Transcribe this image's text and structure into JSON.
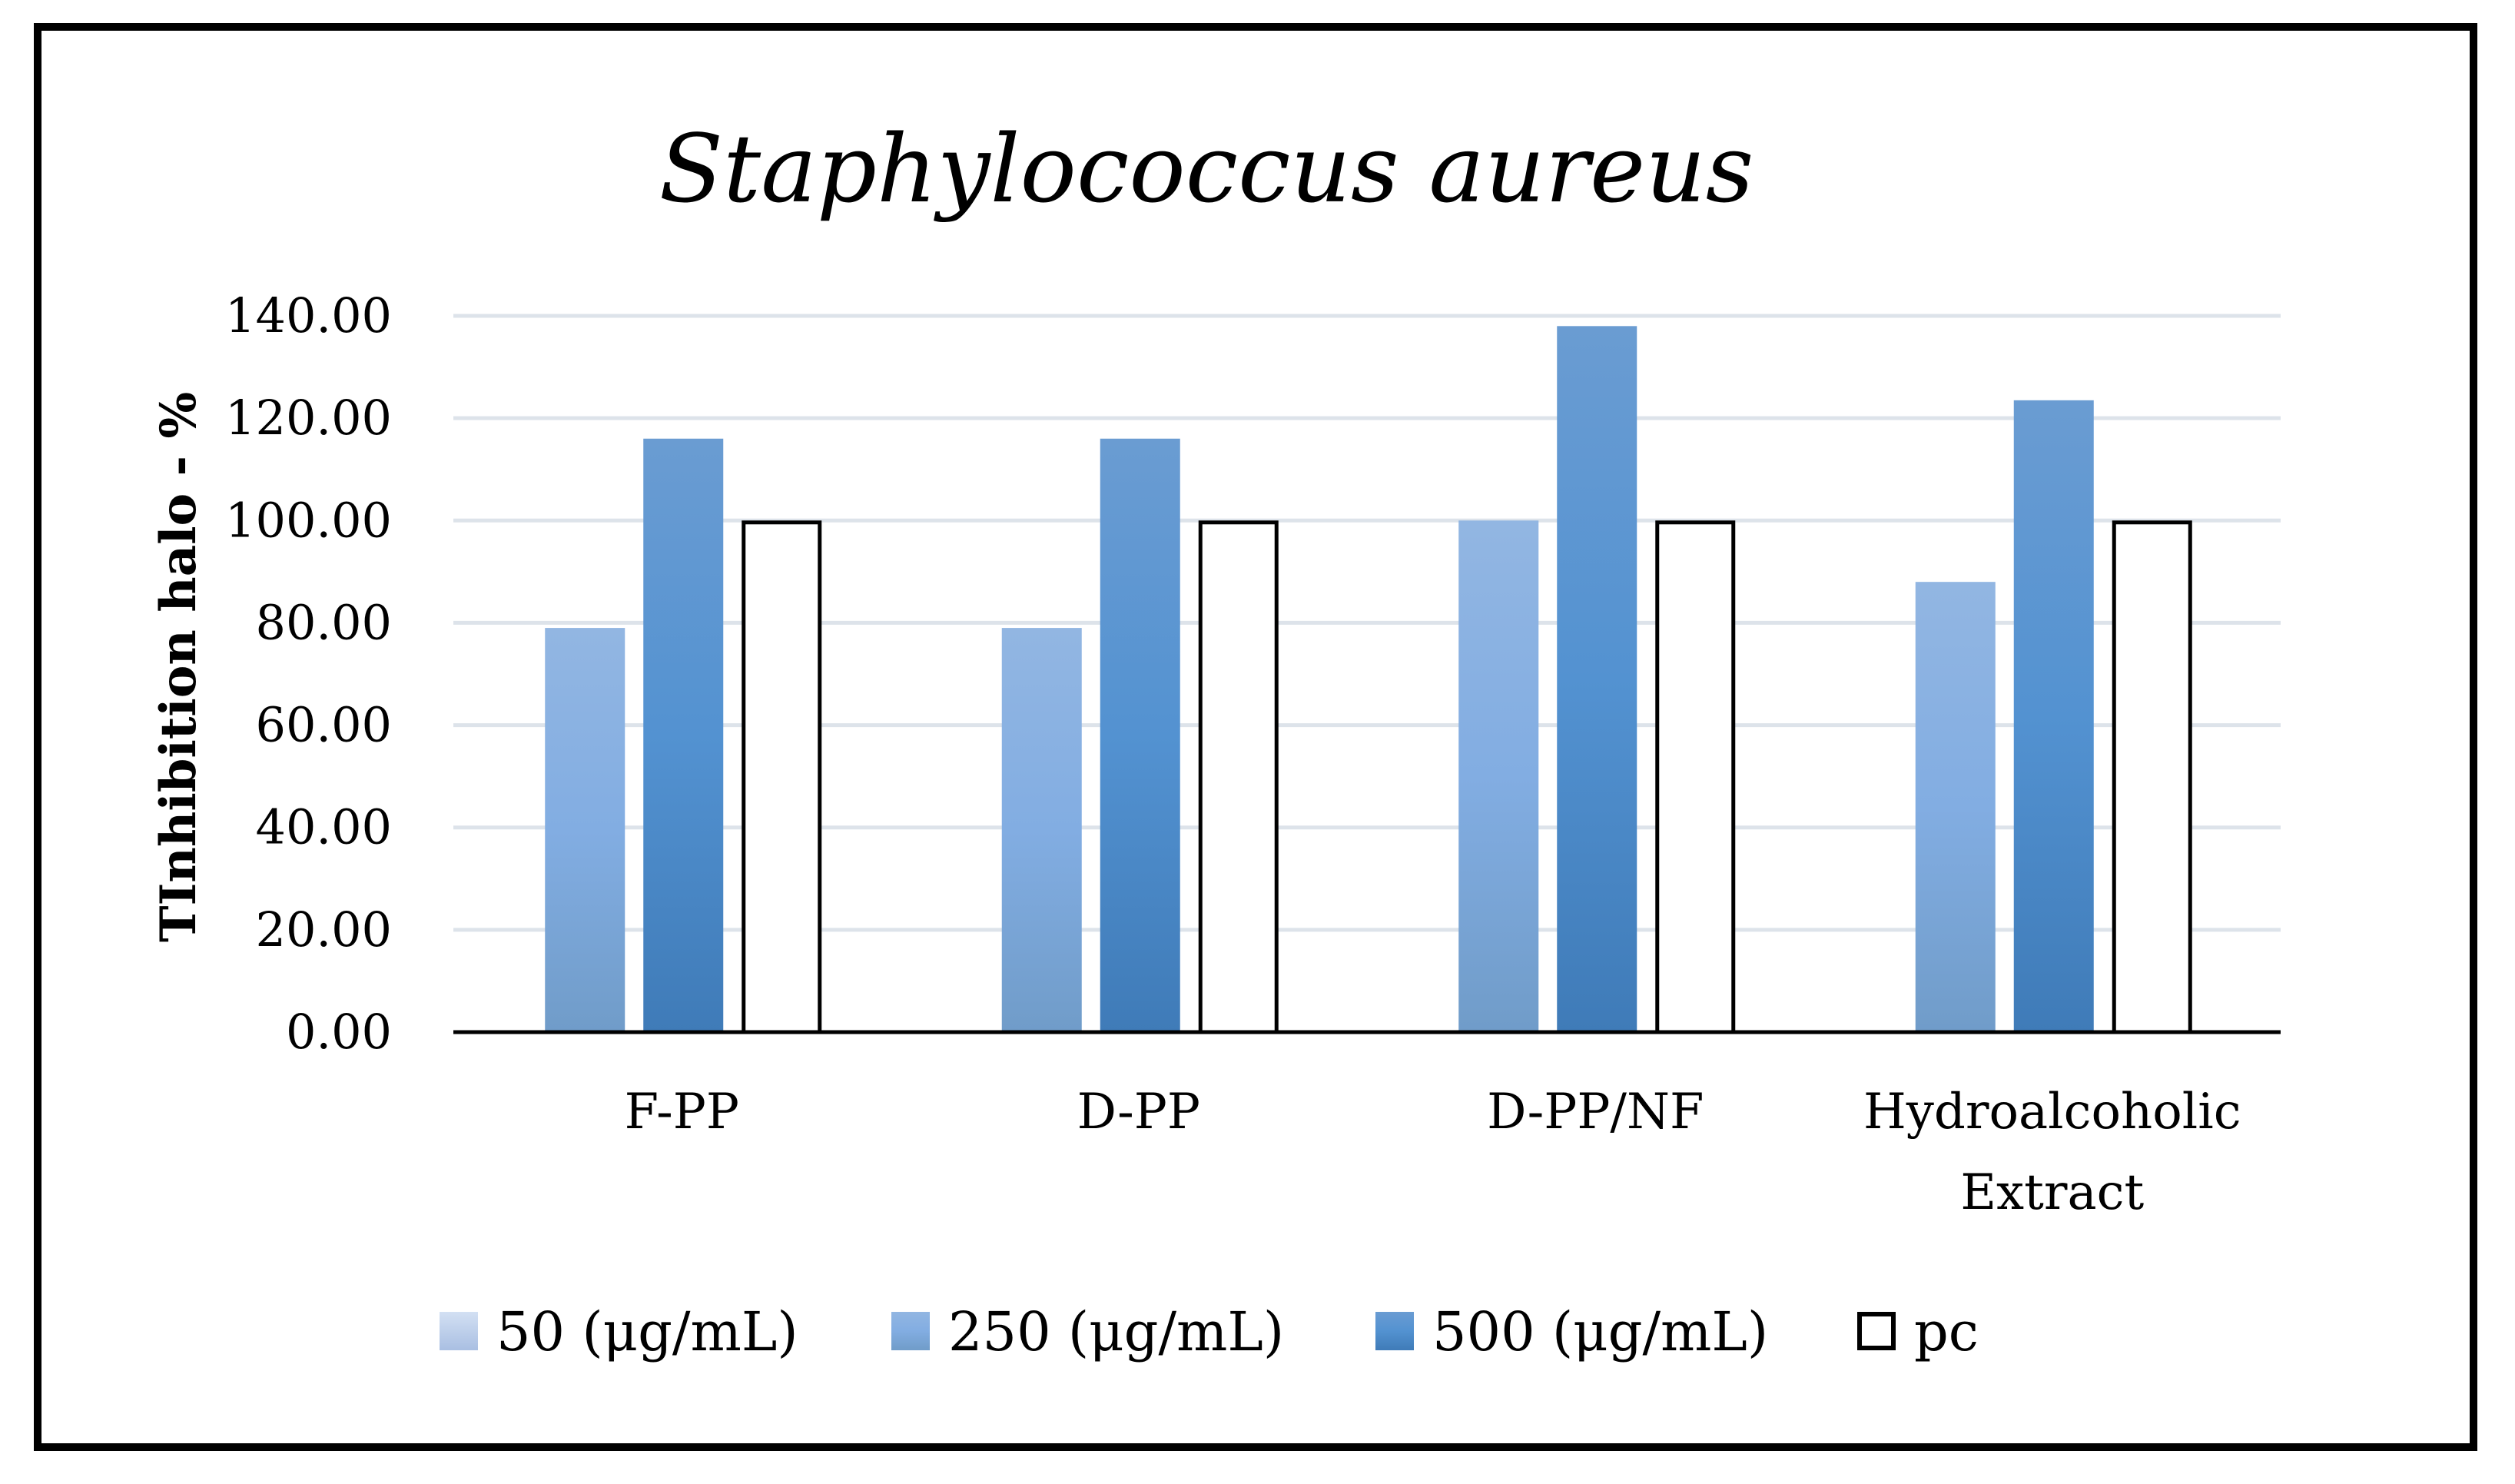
{
  "chart_data": {
    "type": "bar",
    "title": "Staphylococcus aureus",
    "xlabel": "",
    "ylabel": "TInhibition halo - %",
    "ylim": [
      0,
      140
    ],
    "yticks": [
      0,
      20,
      40,
      60,
      80,
      100,
      120,
      140
    ],
    "ytick_labels": [
      "0.00",
      "20.00",
      "40.00",
      "60.00",
      "80.00",
      "100.00",
      "120.00",
      "140.00"
    ],
    "grid": true,
    "legend_position": "bottom",
    "categories": [
      [
        "F-PP"
      ],
      [
        "D-PP"
      ],
      [
        "D-PP/NF"
      ],
      [
        "Hydroalcoholic",
        "Extract"
      ]
    ],
    "series": [
      {
        "name": "50 (μg/mL)",
        "values": [
          null,
          null,
          null,
          null
        ],
        "color": "#b9cbe8"
      },
      {
        "name": "250 (μg/mL)",
        "values": [
          79,
          79,
          100,
          88
        ],
        "color": "#7ea7d8"
      },
      {
        "name": "500 (μg/mL)",
        "values": [
          116,
          116,
          138,
          123.5
        ],
        "color": "#4a87c6"
      },
      {
        "name": "pc",
        "values": [
          100,
          100,
          100,
          100
        ],
        "color": "#ffffff"
      }
    ]
  }
}
